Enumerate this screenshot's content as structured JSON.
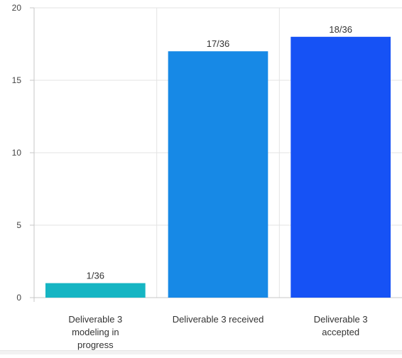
{
  "chart_data": {
    "type": "bar",
    "title": "",
    "xlabel": "",
    "ylabel": "",
    "categories": [
      [
        "Deliverable 3",
        "modeling in",
        "progress"
      ],
      [
        "Deliverable 3 received"
      ],
      [
        "Deliverable 3",
        "accepted"
      ]
    ],
    "values": [
      1,
      17,
      18
    ],
    "data_labels": [
      "1/36",
      "17/36",
      "18/36"
    ],
    "colors": [
      "#16b5c3",
      "#1789e6",
      "#1652f5"
    ],
    "ylim": [
      0,
      20
    ],
    "yticks": [
      "0",
      "5",
      "10",
      "15",
      "20"
    ],
    "grid": true,
    "legend": "none"
  }
}
